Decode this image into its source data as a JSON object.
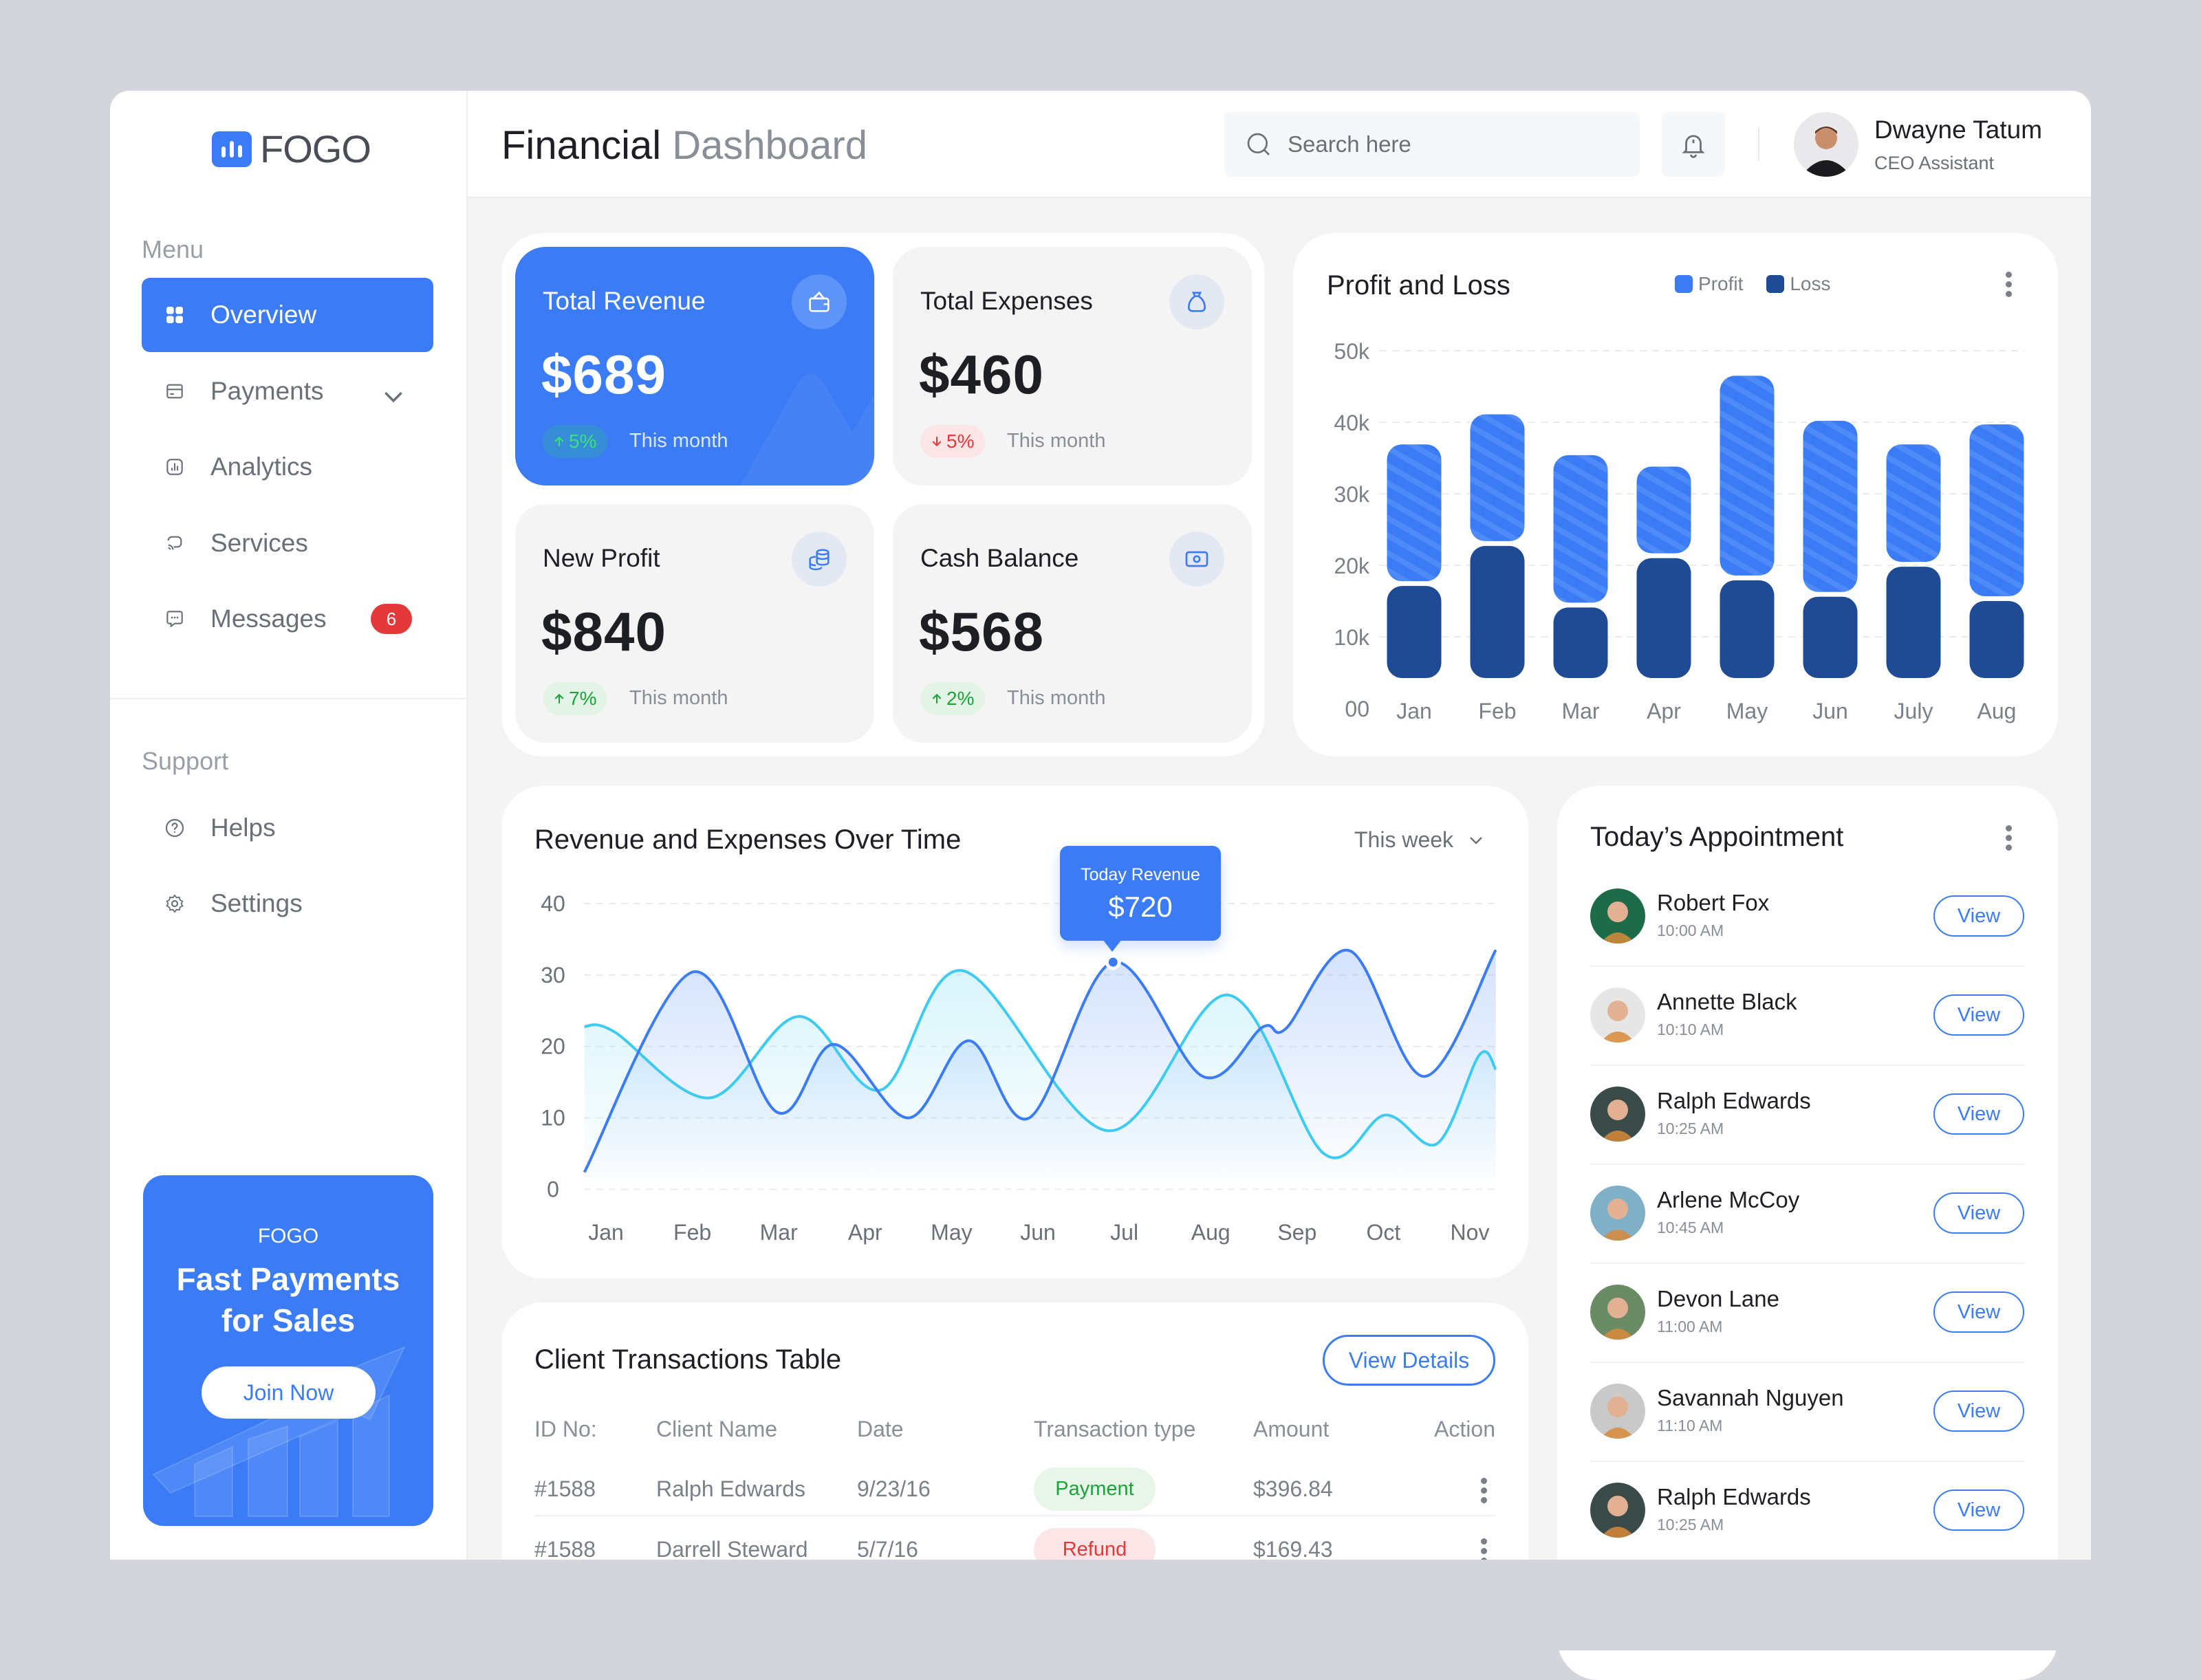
{
  "brand": {
    "name": "FOGO",
    "logo_icon": "bar-chart-logo-icon",
    "accent": "#3b7cf6",
    "navy": "#1f4a94",
    "cyan": "#3ecbf0"
  },
  "header": {
    "title_strong": "Financial",
    "title_light": "Dashboard",
    "search_placeholder": "Search here",
    "user_name": "Dwayne Tatum",
    "user_role": "CEO Assistant"
  },
  "sidebar": {
    "menu_label": "Menu",
    "items": [
      {
        "label": "Overview",
        "icon": "grid-icon",
        "active": true
      },
      {
        "label": "Payments",
        "icon": "card-icon",
        "has_chevron": true
      },
      {
        "label": "Analytics",
        "icon": "analytics-icon"
      },
      {
        "label": "Services",
        "icon": "services-icon"
      },
      {
        "label": "Messages",
        "icon": "message-icon",
        "badge": "6"
      }
    ],
    "support_label": "Support",
    "support_items": [
      {
        "label": "Helps",
        "icon": "help-icon"
      },
      {
        "label": "Settings",
        "icon": "gear-icon"
      }
    ],
    "promo": {
      "brand": "FOGO",
      "line1": "Fast Payments",
      "line2": "for Sales",
      "button": "Join Now"
    }
  },
  "stats": [
    {
      "title": "Total Revenue",
      "value": "$689",
      "change": "5%",
      "direction": "up",
      "note": "This month",
      "icon": "wallet-icon",
      "active": true
    },
    {
      "title": "Total Expenses",
      "value": "$460",
      "change": "5%",
      "direction": "down",
      "note": "This month",
      "icon": "money-bag-icon"
    },
    {
      "title": "New Profit",
      "value": "$840",
      "change": "7%",
      "direction": "up",
      "note": "This month",
      "icon": "coins-icon"
    },
    {
      "title": "Cash Balance",
      "value": "$568",
      "change": "2%",
      "direction": "up",
      "note": "This month",
      "icon": "cash-icon"
    }
  ],
  "chart_data": [
    {
      "type": "bar",
      "stacked": true,
      "title": "Profit and Loss",
      "categories": [
        "Jan",
        "Feb",
        "Mar",
        "Apr",
        "May",
        "Jun",
        "July",
        "Aug"
      ],
      "series": [
        {
          "name": "Loss",
          "color": "#1f4a94",
          "values": [
            17.1,
            22.7,
            14.1,
            21.0,
            17.9,
            15.6,
            19.8,
            15.0
          ]
        },
        {
          "name": "Profit",
          "color": "#3b7cf6",
          "values": [
            19.8,
            18.4,
            21.3,
            12.8,
            28.6,
            24.6,
            17.1,
            24.7
          ]
        }
      ],
      "y_ticks": [
        "50k",
        "40k",
        "30k",
        "20k",
        "10k",
        "00"
      ],
      "ylim": [
        0,
        50
      ],
      "units": "k",
      "grid": true,
      "legend": "top"
    },
    {
      "type": "area",
      "title": "Revenue and Expenses Over Time",
      "period": "This week",
      "categories": [
        "Jan",
        "Feb",
        "Mar",
        "Apr",
        "May",
        "Jun",
        "Jul",
        "Aug",
        "Sep",
        "Oct",
        "Nov"
      ],
      "y_ticks": [
        "40",
        "30",
        "20",
        "10",
        "0"
      ],
      "ylim": [
        0,
        40
      ],
      "grid": true,
      "series": [
        {
          "color": "#3b7cf6",
          "points": [
            [
              -0.25,
              2.4
            ],
            [
              1.0,
              30.4
            ],
            [
              1.98,
              10.8
            ],
            [
              2.64,
              20.3
            ],
            [
              3.5,
              10
            ],
            [
              4.2,
              20.8
            ],
            [
              4.9,
              10
            ],
            [
              5.87,
              31.8
            ],
            [
              6.91,
              15.8
            ],
            [
              7.6,
              22.7
            ],
            [
              7.87,
              22.5
            ],
            [
              8.61,
              33.4
            ],
            [
              9.47,
              15.8
            ],
            [
              10.3,
              33.5
            ]
          ]
        },
        {
          "color": "#3ecbf0",
          "points": [
            [
              -0.25,
              22.8
            ],
            [
              0.09,
              22.1
            ],
            [
              1.2,
              12.8
            ],
            [
              2.23,
              24.2
            ],
            [
              3.18,
              13.9
            ],
            [
              4.13,
              30.6
            ],
            [
              5.81,
              8.2
            ],
            [
              7.2,
              27.2
            ],
            [
              8.31,
              5
            ],
            [
              9.02,
              10.4
            ],
            [
              9.62,
              6.4
            ],
            [
              10.11,
              18.8
            ],
            [
              10.3,
              16.8
            ]
          ]
        }
      ],
      "tooltip": {
        "label": "Today Revenue",
        "value": "$720",
        "month": "Jul"
      }
    }
  ],
  "appointments": {
    "title": "Today’s Appointment",
    "button": "View",
    "items": [
      {
        "name": "Robert Fox",
        "time": "10:00 AM",
        "avatar_bg": "#1e6b4a"
      },
      {
        "name": "Annette Black",
        "time": "10:10 AM",
        "avatar_bg": "#e6e6e6"
      },
      {
        "name": "Ralph Edwards",
        "time": "10:25 AM",
        "avatar_bg": "#3a4a48"
      },
      {
        "name": "Arlene McCoy",
        "time": "10:45 AM",
        "avatar_bg": "#7fb0c8"
      },
      {
        "name": "Devon Lane",
        "time": "11:00 AM",
        "avatar_bg": "#6b8a66"
      },
      {
        "name": "Savannah Nguyen",
        "time": "11:10 AM",
        "avatar_bg": "#c9c9c9"
      },
      {
        "name": "Ralph Edwards",
        "time": "10:25 AM",
        "avatar_bg": "#3a4a48"
      }
    ]
  },
  "transactions": {
    "title": "Client Transactions Table",
    "button": "View Details",
    "columns": [
      "ID No:",
      "Client Name",
      "Date",
      "Transaction type",
      "Amount",
      "Action"
    ],
    "rows": [
      {
        "id": "#1588",
        "client": "Ralph Edwards",
        "date": "9/23/16",
        "type": "Payment",
        "amount": "$396.84"
      },
      {
        "id": "#1588",
        "client": "Darrell Steward",
        "date": "5/7/16",
        "type": "Refund",
        "amount": "$169.43"
      }
    ]
  }
}
